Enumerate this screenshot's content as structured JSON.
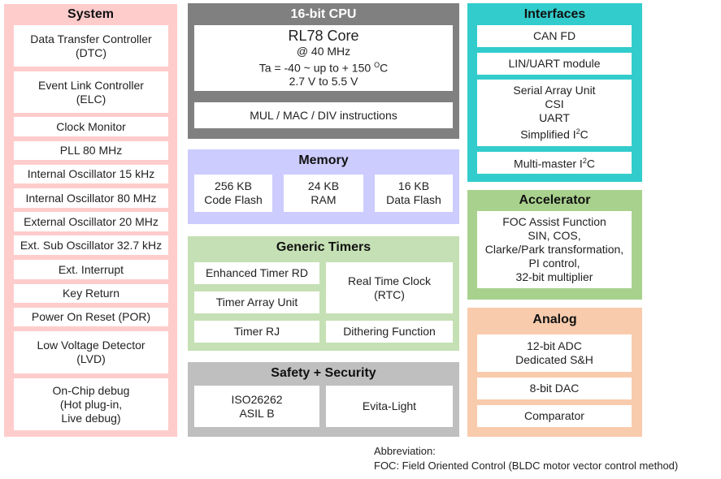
{
  "system": {
    "title": "System",
    "color": "#ffcccc",
    "items": [
      "Data Transfer Controller\n(DTC)",
      "Event Link Controller\n(ELC)",
      "Clock Monitor",
      "PLL 80 MHz",
      "Internal Oscillator 15 kHz",
      "Internal Oscillator 80 MHz",
      "External Oscillator 20 MHz",
      "Ext. Sub Oscillator 32.7 kHz",
      "Ext. Interrupt",
      "Key Return",
      "Power On Reset (POR)",
      "Low Voltage Detector\n(LVD)",
      "On-Chip debug\n(Hot plug-in,\nLive debug)"
    ]
  },
  "cpu": {
    "title": "16-bit CPU",
    "color": "#808080",
    "core": "RL78 Core",
    "freq": "@ 40 MHz",
    "temp": "Ta = -40 ~ up to + 150 ",
    "temp_unit_sup": "O",
    "temp_unit": "C",
    "voltage": "2.7 V to 5.5 V",
    "instructions": "MUL / MAC / DIV instructions"
  },
  "memory": {
    "title": "Memory",
    "color": "#ccccff",
    "items": [
      "256 KB\nCode Flash",
      "24 KB\nRAM",
      "16 KB\nData Flash"
    ]
  },
  "timers": {
    "title": "Generic Timers",
    "color": "#c5e0b4",
    "items": [
      "Enhanced Timer RD",
      "Timer Array Unit",
      "Timer RJ",
      "Real Time Clock\n(RTC)",
      "Dithering Function"
    ]
  },
  "safety": {
    "title": "Safety + Security",
    "color": "#bfbfbf",
    "items": [
      "ISO26262\nASIL B",
      "Evita-Light"
    ]
  },
  "interfaces": {
    "title": "Interfaces",
    "color": "#33cccc",
    "can": "CAN FD",
    "lin": "LIN/UART module",
    "sau": "Serial Array Unit\nCSI\nUART\nSimplified I",
    "sup2": "2",
    "c": "C",
    "mm": "Multi-master I"
  },
  "accelerator": {
    "title": "Accelerator",
    "color": "#a9d18e",
    "item": "FOC Assist Function\nSIN, COS,\nClarke/Park transformation,\nPI control,\n32-bit multiplier"
  },
  "analog": {
    "title": "Analog",
    "color": "#f8cbad",
    "items": [
      "12-bit ADC\nDedicated S&H",
      "8-bit DAC",
      "Comparator"
    ]
  },
  "abbreviation": {
    "heading": "Abbreviation:",
    "foc": "FOC: Field Oriented Control (BLDC motor vector control method)"
  }
}
